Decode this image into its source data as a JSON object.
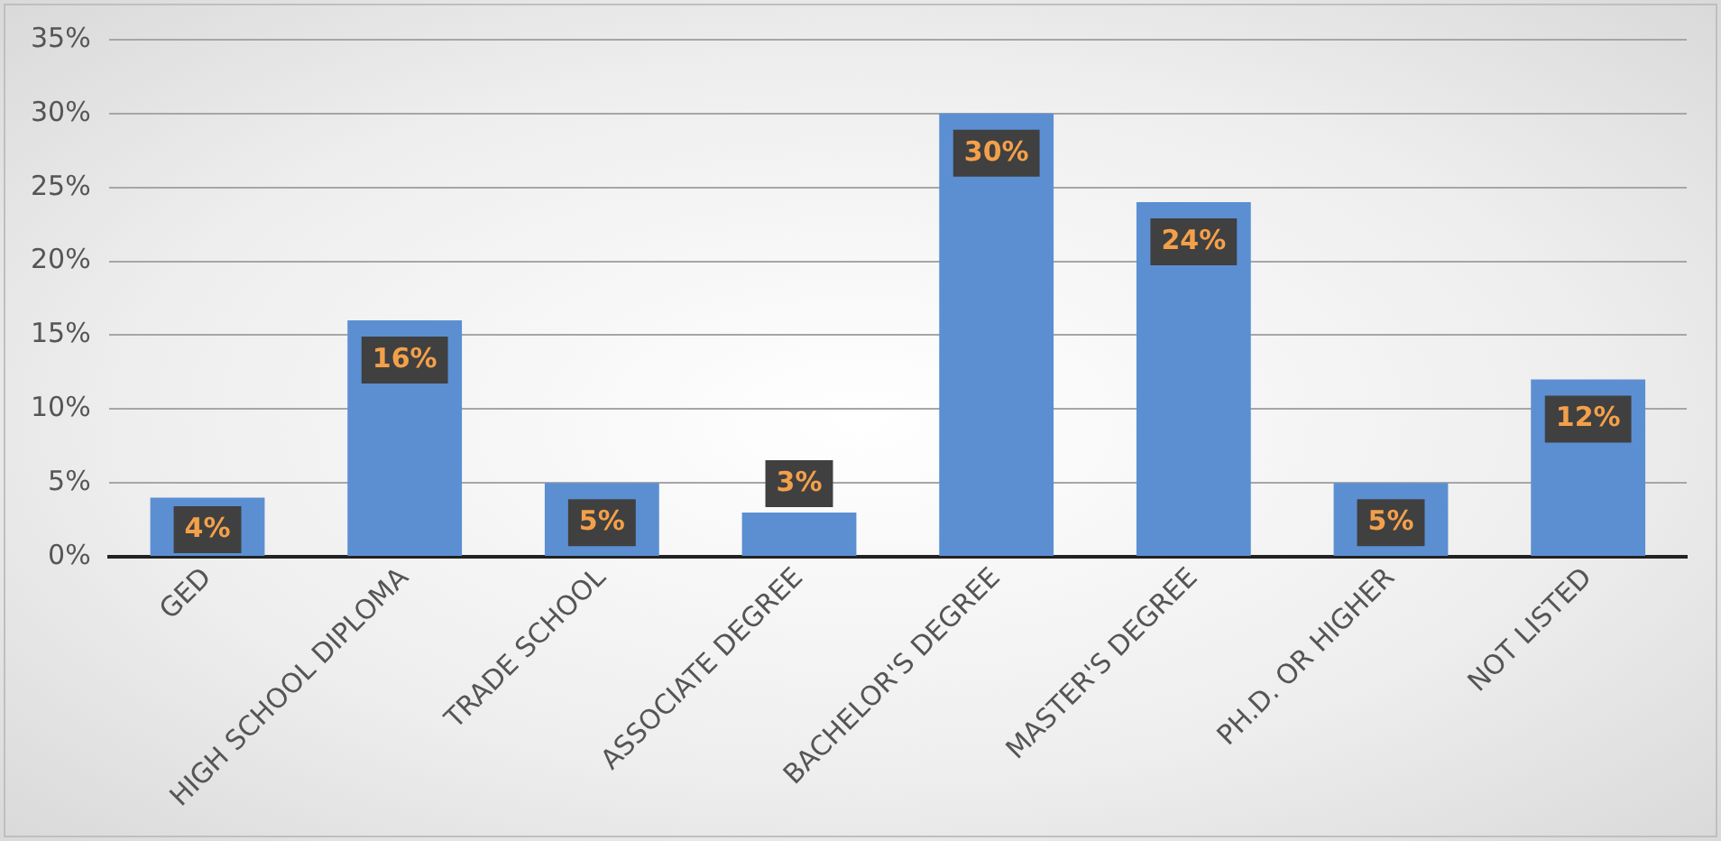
{
  "chart_data": {
    "type": "bar",
    "categories": [
      "GED",
      "HIGH SCHOOL DIPLOMA",
      "TRADE SCHOOL",
      "ASSOCIATE DEGREE",
      "BACHELOR'S DEGREE",
      "MASTER'S DEGREE",
      "PH.D. OR HIGHER",
      "NOT LISTED"
    ],
    "values": [
      4,
      16,
      5,
      3,
      30,
      24,
      5,
      12
    ],
    "value_labels": [
      "4%",
      "16%",
      "5%",
      "3%",
      "30%",
      "24%",
      "5%",
      "12%"
    ],
    "color": "#5b8fd2",
    "ylim": [
      0,
      35
    ],
    "yticks": [
      {
        "value": 0,
        "label": "0%"
      },
      {
        "value": 5,
        "label": "5%"
      },
      {
        "value": 10,
        "label": "10%"
      },
      {
        "value": 15,
        "label": "15%"
      },
      {
        "value": 20,
        "label": "20%"
      },
      {
        "value": 25,
        "label": "25%"
      },
      {
        "value": 30,
        "label": "30%"
      },
      {
        "value": 35,
        "label": "35%"
      }
    ],
    "grid": "y"
  }
}
